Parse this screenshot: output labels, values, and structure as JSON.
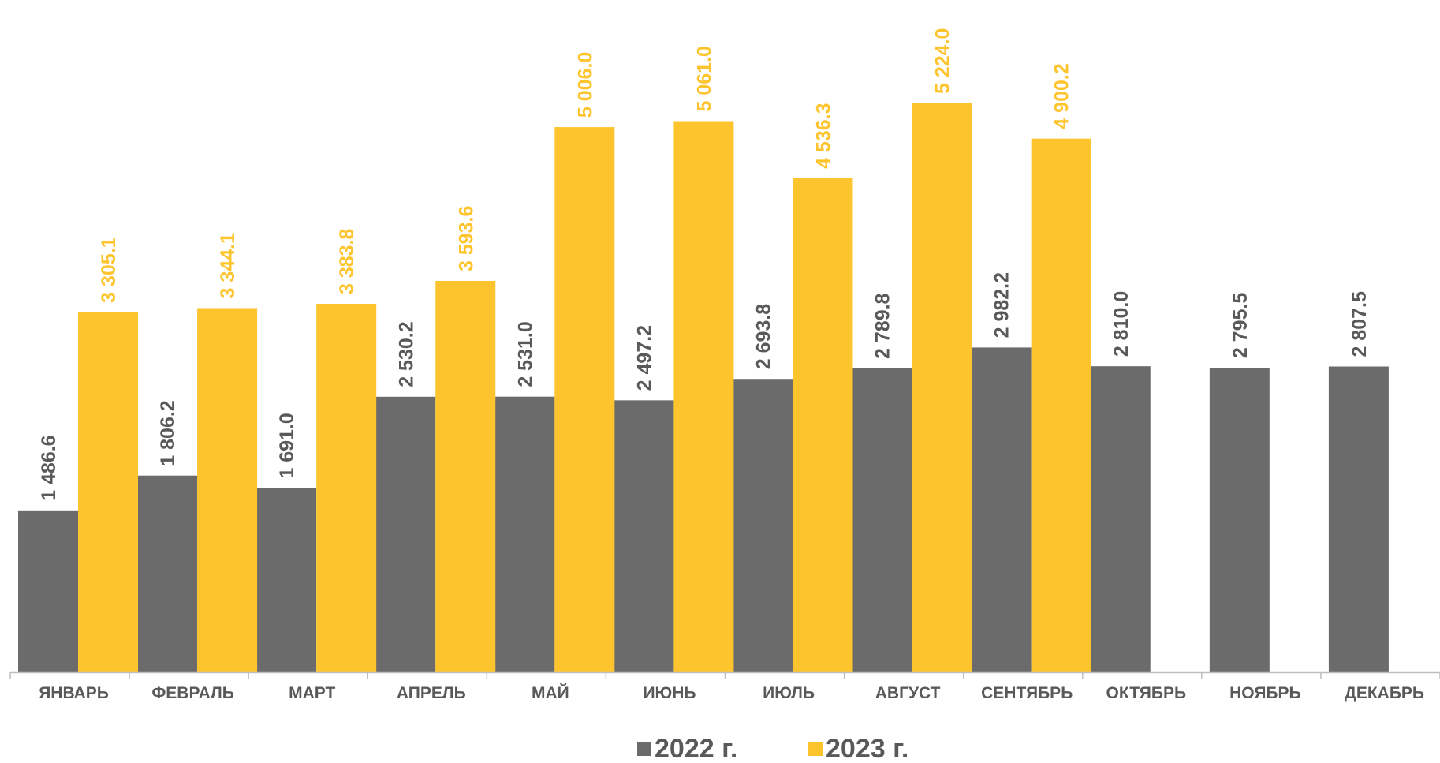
{
  "chart_data": {
    "type": "bar",
    "categories": [
      "ЯНВАРЬ",
      "ФЕВРАЛЬ",
      "МАРТ",
      "АПРЕЛЬ",
      "МАЙ",
      "ИЮНЬ",
      "ИЮЛЬ",
      "АВГУСТ",
      "СЕНТЯБРЬ",
      "ОКТЯБРЬ",
      "НОЯБРЬ",
      "ДЕКАБРЬ"
    ],
    "series": [
      {
        "name": "2022 г.",
        "color": "#6b6b6b",
        "values": [
          1486.6,
          1806.2,
          1691.0,
          2530.2,
          2531.0,
          2497.2,
          2693.8,
          2789.8,
          2982.2,
          2810.0,
          2795.5,
          2807.5
        ],
        "labels": [
          "1 486.6",
          "1 806.2",
          "1 691.0",
          "2 530.2",
          "2 531.0",
          "2 497.2",
          "2 693.8",
          "2 789.8",
          "2 982.2",
          "2 810.0",
          "2 795.5",
          "2 807.5"
        ]
      },
      {
        "name": "2023 г.",
        "color": "#fec42d",
        "values": [
          3305.1,
          3344.1,
          3383.8,
          3593.6,
          5006.0,
          5061.0,
          4536.3,
          5224.0,
          4900.2,
          null,
          null,
          null
        ],
        "labels": [
          "3 305.1",
          "3 344.1",
          "3 383.8",
          "3 593.6",
          "5 006.0",
          "5 061.0",
          "4 536.3",
          "5 224.0",
          "4 900.2",
          "",
          "",
          ""
        ]
      }
    ],
    "title": "",
    "xlabel": "",
    "ylabel": "",
    "ylim": [
      0,
      5500
    ],
    "grid": false,
    "legend": "bottom"
  }
}
